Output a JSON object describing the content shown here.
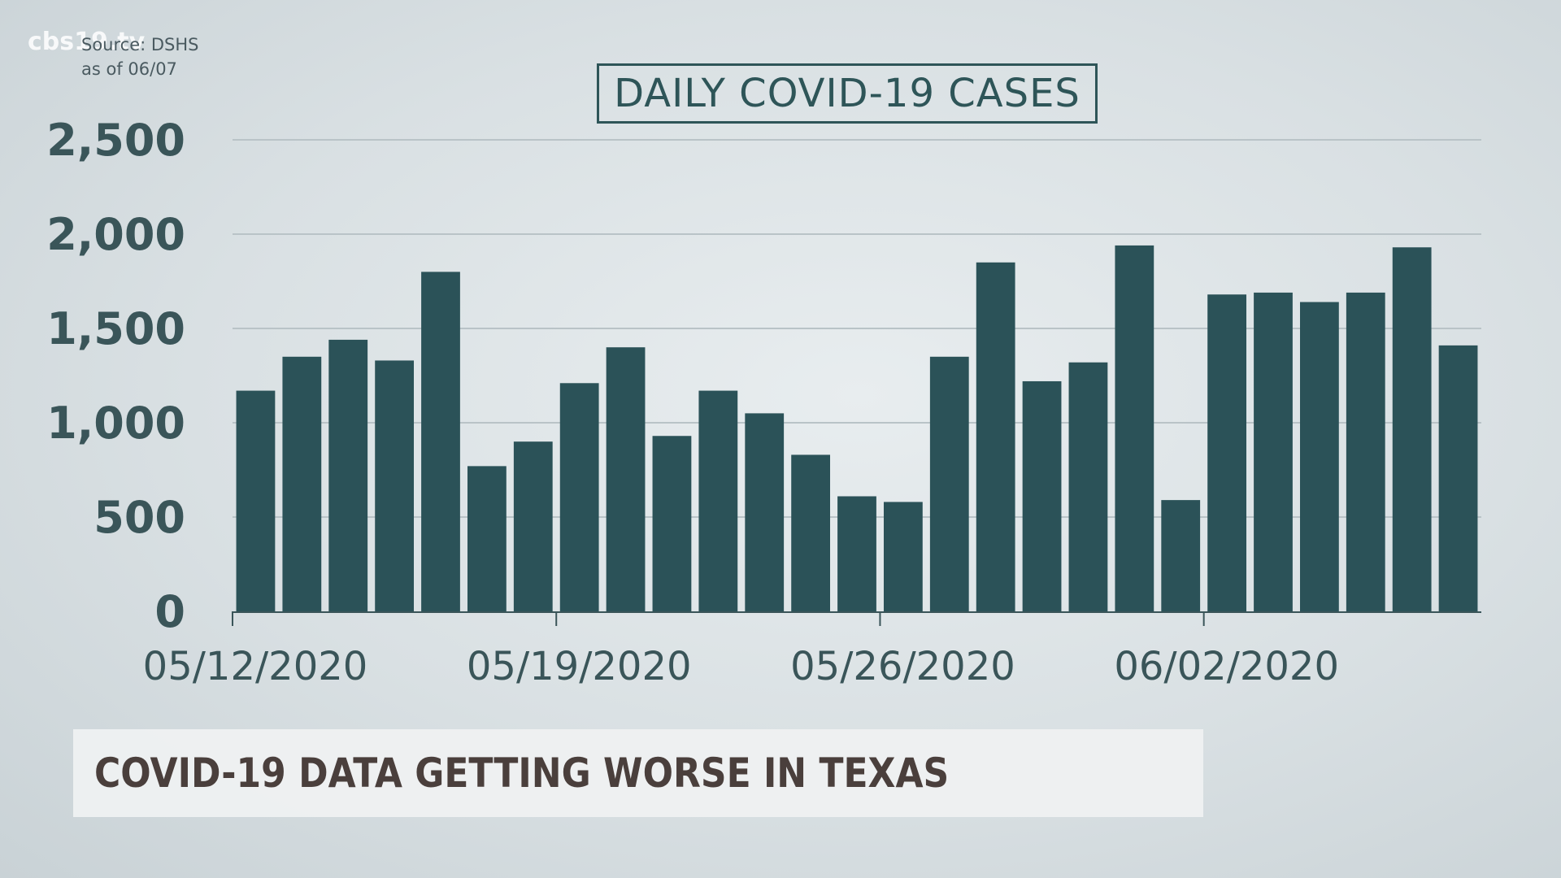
{
  "watermark": "cbs19.tv",
  "source": {
    "line1": "Source: DSHS",
    "line2": "as of 06/07"
  },
  "colors": {
    "bar": "#2b5258",
    "grid": "#b9c3c7",
    "axis": "#3a5559"
  },
  "lower_third": {
    "headline": "COVID-19 DATA GETTING WORSE IN TEXAS"
  },
  "chart_data": {
    "type": "bar",
    "title": "DAILY COVID-19 CASES",
    "xlabel": "",
    "ylabel": "",
    "ylim": [
      0,
      2500
    ],
    "yticks": [
      "0",
      "500",
      "1,000",
      "1,500",
      "2,000",
      "2,500"
    ],
    "ytick_values": [
      0,
      500,
      1000,
      1500,
      2000,
      2500
    ],
    "grid": true,
    "x_tick_labels": [
      {
        "label": "05/12/2020",
        "index": 0
      },
      {
        "label": "05/19/2020",
        "index": 7
      },
      {
        "label": "05/26/2020",
        "index": 14
      },
      {
        "label": "06/02/2020",
        "index": 21
      }
    ],
    "categories": [
      "05/12/2020",
      "05/13/2020",
      "05/14/2020",
      "05/15/2020",
      "05/16/2020",
      "05/17/2020",
      "05/18/2020",
      "05/19/2020",
      "05/20/2020",
      "05/21/2020",
      "05/22/2020",
      "05/23/2020",
      "05/24/2020",
      "05/25/2020",
      "05/26/2020",
      "05/27/2020",
      "05/28/2020",
      "05/29/2020",
      "05/30/2020",
      "05/31/2020",
      "06/01/2020",
      "06/02/2020",
      "06/03/2020",
      "06/04/2020",
      "06/05/2020",
      "06/06/2020",
      "06/07/2020"
    ],
    "values": [
      1170,
      1350,
      1440,
      1330,
      1800,
      770,
      900,
      1210,
      1400,
      930,
      1170,
      1050,
      830,
      610,
      580,
      1350,
      1850,
      1220,
      1320,
      1940,
      590,
      1680,
      1690,
      1640,
      1690,
      1930,
      1410
    ]
  }
}
